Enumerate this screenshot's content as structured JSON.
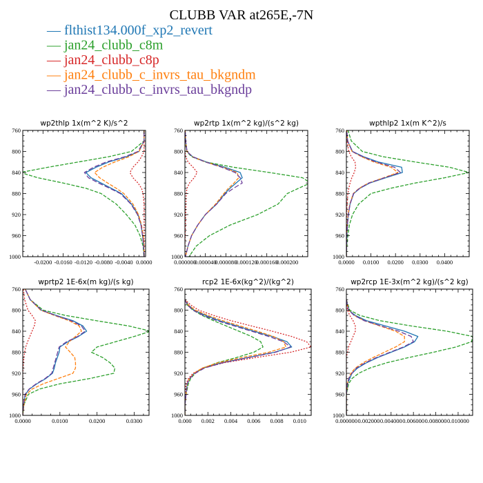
{
  "title": "CLUBB VAR at265E,-7N",
  "legend": [
    {
      "name": "flthist134.000f_xp2_revert",
      "color": "#1f77b4"
    },
    {
      "name": "jan24_clubb_c8m",
      "color": "#2ca02c"
    },
    {
      "name": "jan24_clubb_c8p",
      "color": "#d62728"
    },
    {
      "name": "jan24_clubb_c_invrs_tau_bkgndm",
      "color": "#ff7f0e"
    },
    {
      "name": "jan24_clubb_c_invrs_tau_bkgndp",
      "color": "#6a3d9a"
    }
  ],
  "legend_marker": "—",
  "chart_data": [
    {
      "type": "line",
      "title": "wp2thlp   1x(m^2 K)/s^2",
      "xlim": [
        -0.024,
        0.0003
      ],
      "ylim": [
        760,
        1000
      ],
      "y_inverted": true,
      "xticks": [
        -0.02,
        -0.016,
        -0.012,
        -0.008,
        -0.004,
        0.0
      ],
      "xticklabels": [
        "-0.0200",
        "-0.0160",
        "-0.0120",
        "-0.0080",
        "-0.0040",
        "0.0000"
      ],
      "yticks": [
        760,
        800,
        840,
        880,
        920,
        960,
        1000
      ],
      "y": [
        750,
        780,
        800,
        810,
        820,
        830,
        840,
        850,
        860,
        870,
        880,
        900,
        920,
        940,
        960,
        980,
        1000
      ],
      "series": [
        {
          "x": [
            0.0,
            0.0,
            -0.001,
            -0.0035,
            -0.007,
            -0.0095,
            -0.0115,
            -0.0105,
            -0.0085,
            -0.0065,
            -0.0045,
            -0.0025,
            -0.0012,
            -0.0006,
            -0.0003,
            -0.0001,
            0.0
          ]
        },
        {
          "x": [
            0.0,
            0.0,
            -0.0025,
            -0.007,
            -0.013,
            -0.019,
            -0.0245,
            -0.021,
            -0.016,
            -0.0115,
            -0.0085,
            -0.0055,
            -0.0035,
            -0.0018,
            -0.0008,
            -0.0002,
            0.0
          ]
        },
        {
          "x": [
            0.0,
            0.0,
            0.0,
            -0.0005,
            -0.0012,
            -0.0022,
            -0.0028,
            -0.0022,
            -0.0012,
            -0.0005,
            -0.0002,
            0.0,
            0.0,
            0.0,
            0.0,
            0.0,
            0.0
          ]
        },
        {
          "x": [
            0.0,
            0.0,
            -0.001,
            -0.003,
            -0.0058,
            -0.0082,
            -0.0098,
            -0.0088,
            -0.0072,
            -0.0055,
            -0.004,
            -0.0022,
            -0.0011,
            -0.0005,
            -0.0002,
            0.0,
            0.0
          ]
        },
        {
          "x": [
            0.0,
            0.0,
            -0.0012,
            -0.0038,
            -0.0075,
            -0.01,
            -0.0118,
            -0.011,
            -0.009,
            -0.0068,
            -0.0047,
            -0.0026,
            -0.0013,
            -0.0006,
            -0.0003,
            -0.0001,
            0.0
          ]
        }
      ]
    },
    {
      "type": "line",
      "title": "wp2rtp   1x(m^2 kg)/(s^2 kg)",
      "xlim": [
        0.0,
        0.00024
      ],
      "ylim": [
        760,
        1000
      ],
      "y_inverted": true,
      "xticks": [
        0.0,
        4e-05,
        8e-05,
        0.00012,
        0.00016,
        0.0002
      ],
      "xticklabels": [
        "0.000000",
        "0.000040",
        "0.000080",
        "0.000120",
        "0.000160",
        "0.000200"
      ],
      "yticks": [
        760,
        800,
        840,
        880,
        920,
        960,
        1000
      ],
      "y": [
        750,
        780,
        800,
        810,
        820,
        830,
        840,
        850,
        860,
        870,
        880,
        900,
        920,
        940,
        960,
        980,
        1000
      ],
      "series": [
        {
          "x": [
            0.0,
            1.5e-06,
            4e-06,
            1.5e-05,
            4.2e-05,
            7.8e-05,
            0.000108,
            0.000112,
            0.0001,
            8.8e-05,
            7.8e-05,
            6.2e-05,
            4e-05,
            2.5e-05,
            1.3e-05,
            6e-06,
            1e-06
          ]
        },
        {
          "x": [
            0.0,
            1e-06,
            3.5e-06,
            1.3e-05,
            4e-05,
            9.5e-05,
            0.000165,
            0.00023,
            0.000245,
            0.000222,
            0.0002,
            0.000182,
            0.000142,
            8.8e-05,
            4.8e-05,
            2.2e-05,
            8e-06
          ]
        },
        {
          "x": [
            0.0,
            0.0,
            0.0,
            1.5e-06,
            6e-06,
            1.6e-05,
            2.4e-05,
            1.8e-05,
            9e-06,
            4e-06,
            2.5e-06,
            2e-06,
            1.5e-06,
            1e-06,
            5e-07,
            0.0,
            0.0
          ]
        },
        {
          "x": [
            0.0,
            1.5e-06,
            4e-06,
            1.5e-05,
            4e-05,
            7.4e-05,
            0.000102,
            0.000105,
            9.6e-05,
            8.5e-05,
            7.6e-05,
            6e-05,
            4e-05,
            2.5e-05,
            1.3e-05,
            6e-06,
            1e-06
          ]
        },
        {
          "x": [
            0.0,
            1.5e-06,
            4e-06,
            1.5e-05,
            4e-05,
            7.2e-05,
            9.8e-05,
            0.000108,
            0.000112,
            9.5e-05,
            8e-05,
            6.2e-05,
            4e-05,
            2.5e-05,
            1.3e-05,
            6e-06,
            1e-06
          ]
        }
      ]
    },
    {
      "type": "line",
      "title": "wpthlp2   1x(m K^2)/s",
      "xlim": [
        0.0,
        0.05
      ],
      "ylim": [
        760,
        1000
      ],
      "y_inverted": true,
      "xticks": [
        0.0,
        0.01,
        0.02,
        0.03,
        0.04
      ],
      "xticklabels": [
        "0.0000",
        "0.0100",
        "0.0200",
        "0.0300",
        "0.0400"
      ],
      "yticks": [
        760,
        800,
        840,
        880,
        920,
        960,
        1000
      ],
      "y": [
        750,
        780,
        800,
        810,
        820,
        830,
        840,
        850,
        860,
        870,
        880,
        900,
        920,
        940,
        960,
        980,
        1000
      ],
      "series": [
        {
          "x": [
            0.0,
            0.0005,
            0.0025,
            0.007,
            0.013,
            0.0225,
            0.0228,
            0.016,
            0.0095,
            0.0055,
            0.003,
            0.0015,
            0.0008,
            0.0004,
            0.0002,
            0.0001,
            0.0
          ]
        },
        {
          "x": [
            0.0,
            0.002,
            0.0065,
            0.015,
            0.028,
            0.042,
            0.05,
            0.04,
            0.028,
            0.018,
            0.01,
            0.005,
            0.0025,
            0.0012,
            0.0006,
            0.0002,
            0.0
          ]
        },
        {
          "x": [
            0.0,
            0.0002,
            0.001,
            0.002,
            0.0035,
            0.0038,
            0.0032,
            0.0022,
            0.0015,
            0.001,
            0.0006,
            0.0003,
            0.0001,
            0.0,
            0.0,
            0.0,
            0.0
          ]
        },
        {
          "x": [
            0.0,
            0.0005,
            0.0023,
            0.0062,
            0.0112,
            0.0182,
            0.021,
            0.0152,
            0.009,
            0.0052,
            0.0028,
            0.0014,
            0.0007,
            0.0003,
            0.0001,
            0.0,
            0.0
          ]
        },
        {
          "x": [
            0.0,
            0.0005,
            0.0024,
            0.0066,
            0.012,
            0.0196,
            0.022,
            0.0155,
            0.0092,
            0.0054,
            0.0029,
            0.0015,
            0.0008,
            0.0004,
            0.0002,
            0.0001,
            0.0
          ]
        }
      ]
    },
    {
      "type": "line",
      "title": "wprtp2   1E-6x(m kg)/(s kg)",
      "xlim": [
        0.0,
        0.034
      ],
      "ylim": [
        760,
        1000
      ],
      "y_inverted": true,
      "xticks": [
        0.0,
        0.01,
        0.02,
        0.03
      ],
      "xticklabels": [
        "0.0000",
        "0.0100",
        "0.0200",
        "0.0300"
      ],
      "yticks": [
        760,
        800,
        840,
        880,
        920,
        960,
        1000
      ],
      "y": [
        750,
        780,
        800,
        810,
        820,
        830,
        840,
        850,
        860,
        870,
        880,
        890,
        900,
        910,
        920,
        930,
        940,
        950,
        960,
        980,
        1000
      ],
      "series": [
        {
          "x": [
            0.0,
            0.002,
            0.005,
            0.009,
            0.0135,
            0.0162,
            0.0172,
            0.015,
            0.0122,
            0.01,
            0.0098,
            0.0093,
            0.0088,
            0.0085,
            0.008,
            0.0062,
            0.0038,
            0.0018,
            0.0007,
            0.0002,
            0.0
          ]
        },
        {
          "x": [
            0.0,
            0.002,
            0.0055,
            0.0115,
            0.0198,
            0.0285,
            0.0345,
            0.03,
            0.025,
            0.02,
            0.0185,
            0.0215,
            0.0235,
            0.0248,
            0.0245,
            0.018,
            0.01,
            0.0045,
            0.0015,
            0.0003,
            0.0
          ]
        },
        {
          "x": [
            0.0,
            0.0005,
            0.0014,
            0.0025,
            0.0034,
            0.0031,
            0.0025,
            0.0019,
            0.0013,
            0.0008,
            0.0005,
            0.0003,
            0.0002,
            0.0001,
            0.0,
            0.0,
            0.0,
            0.0,
            0.0,
            0.0,
            0.0
          ]
        },
        {
          "x": [
            0.0,
            0.002,
            0.0048,
            0.0085,
            0.0125,
            0.0152,
            0.0158,
            0.0142,
            0.0125,
            0.0115,
            0.0128,
            0.014,
            0.0142,
            0.0142,
            0.0135,
            0.0095,
            0.0055,
            0.0025,
            0.001,
            0.0003,
            0.0
          ]
        },
        {
          "x": [
            0.0,
            0.002,
            0.005,
            0.0088,
            0.013,
            0.0158,
            0.0168,
            0.0148,
            0.0118,
            0.0098,
            0.0094,
            0.009,
            0.0086,
            0.0082,
            0.0078,
            0.006,
            0.0036,
            0.0017,
            0.0006,
            0.0002,
            0.0
          ]
        }
      ]
    },
    {
      "type": "line",
      "title": "rcp2   1E-6x(kg^2)/(kg^2)",
      "xlim": [
        0.0,
        0.011
      ],
      "ylim": [
        760,
        1000
      ],
      "y_inverted": true,
      "xticks": [
        0.0,
        0.002,
        0.004,
        0.006,
        0.008,
        0.01
      ],
      "xticklabels": [
        "0.000",
        "0.002",
        "0.004",
        "0.006",
        "0.008",
        "0.010"
      ],
      "yticks": [
        760,
        800,
        840,
        880,
        920,
        960,
        1000
      ],
      "y": [
        780,
        790,
        800,
        810,
        820,
        830,
        840,
        850,
        860,
        870,
        880,
        890,
        900,
        910,
        920,
        930,
        940,
        960,
        980,
        1000
      ],
      "series": [
        {
          "x": [
            0.0,
            0.0003,
            0.0008,
            0.0018,
            0.003,
            0.0045,
            0.006,
            0.0076,
            0.0089,
            0.0093,
            0.0078,
            0.0055,
            0.0032,
            0.0016,
            0.0008,
            0.0004,
            0.0002,
            0.0001,
            0.0,
            0.0
          ]
        },
        {
          "x": [
            0.0,
            0.0002,
            0.0007,
            0.0015,
            0.0025,
            0.0036,
            0.0047,
            0.0058,
            0.0066,
            0.0068,
            0.006,
            0.0045,
            0.0028,
            0.0016,
            0.0009,
            0.0005,
            0.0003,
            0.0001,
            0.0,
            0.0
          ]
        },
        {
          "x": [
            0.0,
            0.0005,
            0.0012,
            0.0025,
            0.004,
            0.0058,
            0.0076,
            0.0093,
            0.0106,
            0.011,
            0.0092,
            0.0062,
            0.0034,
            0.0016,
            0.0007,
            0.0003,
            0.0001,
            0.0,
            0.0,
            0.0
          ]
        },
        {
          "x": [
            0.0,
            0.0003,
            0.0009,
            0.002,
            0.0033,
            0.0048,
            0.0063,
            0.0077,
            0.0086,
            0.0088,
            0.0073,
            0.005,
            0.0029,
            0.0015,
            0.0008,
            0.0004,
            0.0002,
            0.0001,
            0.0,
            0.0
          ]
        },
        {
          "x": [
            0.0,
            0.0002,
            0.0007,
            0.0016,
            0.0028,
            0.0043,
            0.0058,
            0.0073,
            0.0086,
            0.0092,
            0.0079,
            0.0056,
            0.0033,
            0.0017,
            0.0009,
            0.0004,
            0.0002,
            0.0001,
            0.0,
            0.0
          ]
        }
      ]
    },
    {
      "type": "line",
      "title": "wp2rcp   1E-3x(m^2 kg)/(s^2 kg)",
      "xlim": [
        0.0,
        0.0113
      ],
      "ylim": [
        760,
        1000
      ],
      "y_inverted": true,
      "xticks": [
        0.0,
        0.002,
        0.004,
        0.006,
        0.008,
        0.01
      ],
      "xticklabels": [
        "0.000000",
        "0.002000",
        "0.004000",
        "0.006000",
        "0.008000",
        "0.010000"
      ],
      "yticks": [
        760,
        800,
        840,
        880,
        920,
        960,
        1000
      ],
      "y": [
        780,
        800,
        810,
        820,
        830,
        840,
        850,
        860,
        870,
        880,
        890,
        900,
        910,
        920,
        930,
        940,
        960,
        980,
        1000
      ],
      "series": [
        {
          "x": [
            0.0,
            0.0002,
            0.0008,
            0.0018,
            0.0035,
            0.0052,
            0.0064,
            0.0061,
            0.0052,
            0.004,
            0.0028,
            0.0018,
            0.001,
            0.0005,
            0.0003,
            0.0001,
            0.0,
            0.0,
            0.0
          ]
        },
        {
          "x": [
            0.0,
            0.0003,
            0.0012,
            0.003,
            0.0058,
            0.009,
            0.0113,
            0.0112,
            0.0098,
            0.0078,
            0.0056,
            0.0036,
            0.0021,
            0.0011,
            0.0005,
            0.0002,
            0.0,
            0.0,
            0.0
          ]
        },
        {
          "x": [
            0.0,
            0.0001,
            0.0003,
            0.0006,
            0.0008,
            0.0008,
            0.0006,
            0.0004,
            0.0002,
            0.0001,
            0.0,
            0.0,
            0.0,
            0.0,
            0.0,
            0.0,
            0.0,
            0.0,
            0.0
          ]
        },
        {
          "x": [
            0.0,
            0.0002,
            0.0007,
            0.0016,
            0.003,
            0.0044,
            0.0052,
            0.0052,
            0.0044,
            0.0034,
            0.0024,
            0.0015,
            0.0008,
            0.0004,
            0.0002,
            0.0001,
            0.0,
            0.0,
            0.0
          ]
        },
        {
          "x": [
            0.0,
            0.0002,
            0.0007,
            0.0016,
            0.0031,
            0.0047,
            0.0058,
            0.006,
            0.0051,
            0.0039,
            0.0027,
            0.0017,
            0.0009,
            0.0005,
            0.0002,
            0.0001,
            0.0,
            0.0,
            0.0
          ]
        }
      ]
    }
  ]
}
